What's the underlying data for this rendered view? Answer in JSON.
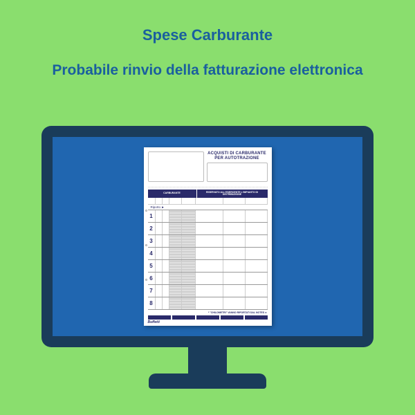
{
  "colors": {
    "page_bg": "#8ade6e",
    "heading_text": "#1a5f9e",
    "monitor_frame": "#1a3c5a",
    "monitor_screen": "#2066b0",
    "document_bg": "#ffffff",
    "document_accent": "#2a2a6a"
  },
  "title": "Spese Carburante",
  "subtitle": "Probabile rinvio della fatturazione elettronica",
  "document": {
    "heading_line1": "ACQUISTI DI CARBURANTE",
    "heading_line2": "PER AUTOTRAZIONE",
    "col_left": "CARBURANTE",
    "col_right": "RISERVATO ALL'ESERCENTE L'IMPIANTO DI DISTRIBUZIONE",
    "riporto": "Riporto  ►",
    "footer_note": "* \"CHILOMETRI\" VANNO RIPORTATI DAL NOTES  ►",
    "brand": "Buffetti",
    "row_numbers": [
      "1",
      "2",
      "3",
      "4",
      "5",
      "6",
      "7",
      "8"
    ],
    "left_cell_widths": [
      10,
      10,
      18,
      20
    ],
    "right_cell_widths": [
      40,
      32,
      32
    ],
    "punch_hole_tops": [
      90,
      140,
      190
    ]
  }
}
